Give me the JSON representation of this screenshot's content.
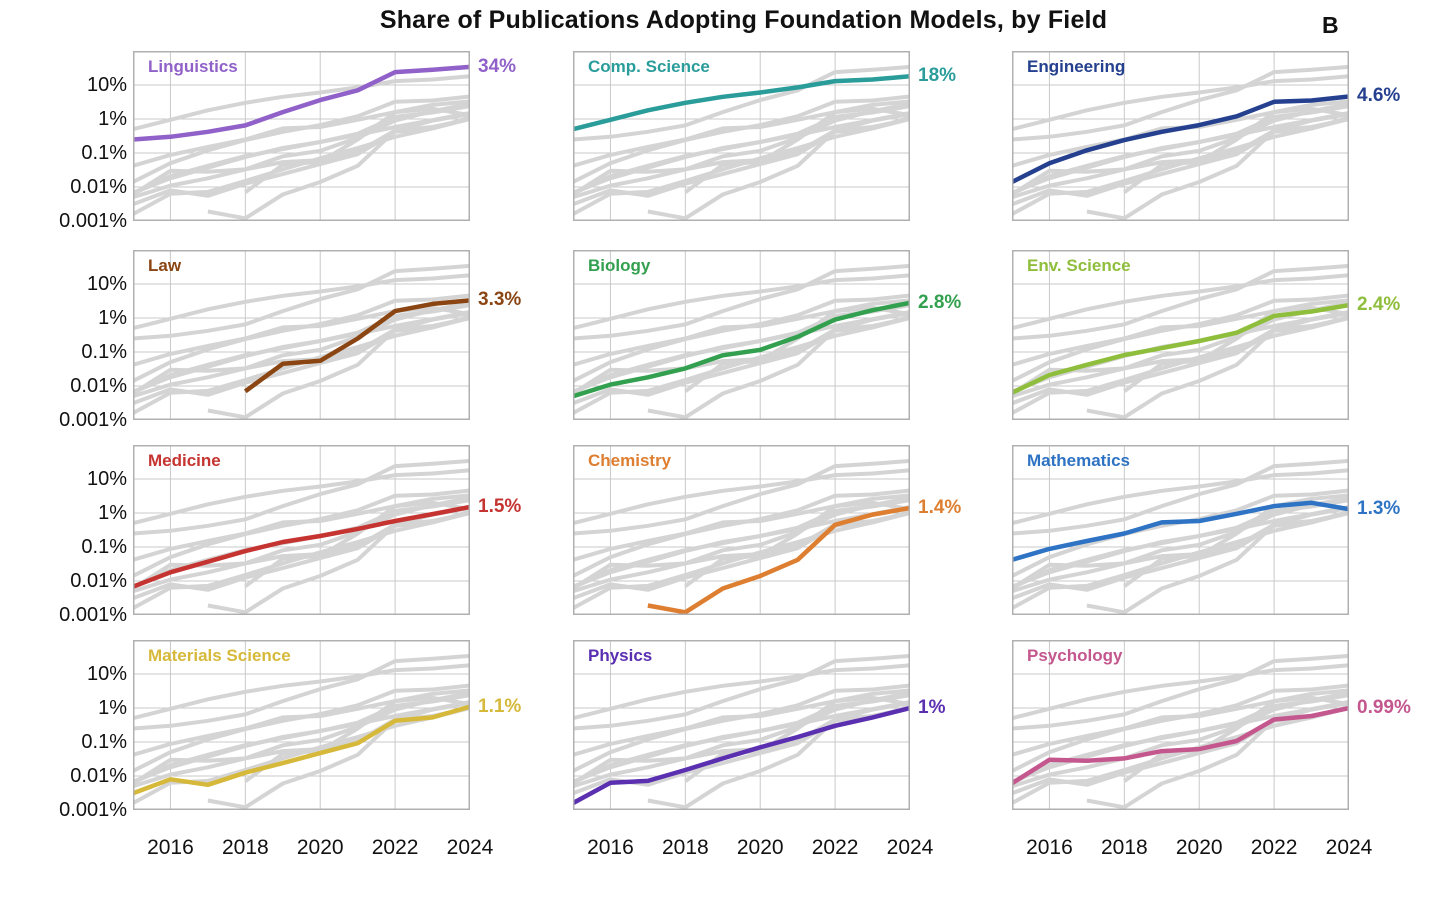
{
  "title": "Share of Publications Adopting Foundation Models, by Field",
  "panel_letter": "B",
  "colors": {
    "background": "#ffffff",
    "text": "#111111",
    "grid_line": "#c9c9c9",
    "panel_border": "#b0b0b0",
    "background_series": "#d4d4d4"
  },
  "chart_data": {
    "type": "line",
    "y_scale": "log",
    "grid": true,
    "x": [
      2015,
      2016,
      2017,
      2018,
      2019,
      2020,
      2021,
      2022,
      2023,
      2024
    ],
    "xlim": [
      2015,
      2024
    ],
    "ylim_percent": [
      0.001,
      100
    ],
    "x_ticks": [
      "2016",
      "2018",
      "2020",
      "2022",
      "2024"
    ],
    "x_tick_years": [
      2016,
      2018,
      2020,
      2022,
      2024
    ],
    "y_ticks": [
      {
        "label": "10%",
        "value": 10
      },
      {
        "label": "1%",
        "value": 1
      },
      {
        "label": "0.1%",
        "value": 0.1
      },
      {
        "label": "0.01%",
        "value": 0.01
      },
      {
        "label": "0.001%",
        "value": 0.001
      }
    ],
    "series": [
      {
        "name": "Linguistics",
        "color": "#9061c8",
        "end_label": "34%",
        "values": [
          0.25,
          0.3,
          0.42,
          0.65,
          1.6,
          3.6,
          7,
          24,
          28,
          34
        ]
      },
      {
        "name": "Comp. Science",
        "color": "#2a9d9b",
        "end_label": "18%",
        "values": [
          0.5,
          0.95,
          1.8,
          3,
          4.5,
          6,
          8.5,
          13,
          14.5,
          18
        ]
      },
      {
        "name": "Engineering",
        "color": "#24408f",
        "end_label": "4.6%",
        "values": [
          0.014,
          0.05,
          0.12,
          0.24,
          0.42,
          0.66,
          1.2,
          3.2,
          3.5,
          4.6
        ]
      },
      {
        "name": "Law",
        "color": "#8a4513",
        "end_label": "3.3%",
        "values": [
          null,
          null,
          null,
          0.007,
          0.045,
          0.055,
          0.25,
          1.6,
          2.6,
          3.3
        ]
      },
      {
        "name": "Biology",
        "color": "#33a04f",
        "end_label": "2.8%",
        "values": [
          0.005,
          0.011,
          0.018,
          0.033,
          0.08,
          0.115,
          0.28,
          0.9,
          1.7,
          2.8
        ]
      },
      {
        "name": "Env. Science",
        "color": "#8fbe3c",
        "end_label": "2.4%",
        "values": [
          0.0063,
          0.021,
          0.042,
          0.081,
          0.13,
          0.21,
          0.37,
          1.15,
          1.55,
          2.4
        ]
      },
      {
        "name": "Medicine",
        "color": "#c53430",
        "end_label": "1.5%",
        "values": [
          0.0068,
          0.018,
          0.037,
          0.076,
          0.14,
          0.21,
          0.34,
          0.58,
          0.93,
          1.5
        ]
      },
      {
        "name": "Chemistry",
        "color": "#dd7e30",
        "end_label": "1.4%",
        "values": [
          null,
          null,
          0.0019,
          0.0012,
          0.006,
          0.014,
          0.042,
          0.45,
          0.9,
          1.4
        ]
      },
      {
        "name": "Mathematics",
        "color": "#2e73c4",
        "end_label": "1.3%",
        "values": [
          0.042,
          0.088,
          0.15,
          0.25,
          0.53,
          0.58,
          0.95,
          1.6,
          2.0,
          1.3
        ]
      },
      {
        "name": "Materials Science",
        "color": "#d6b93a",
        "end_label": "1.1%",
        "values": [
          0.0031,
          0.008,
          0.0055,
          0.0125,
          0.024,
          0.047,
          0.092,
          0.42,
          0.53,
          1.1
        ]
      },
      {
        "name": "Physics",
        "color": "#5a2fb0",
        "end_label": "1%",
        "values": [
          0.0016,
          0.0063,
          0.0072,
          0.015,
          0.033,
          0.07,
          0.14,
          0.3,
          0.53,
          1.0
        ]
      },
      {
        "name": "Psychology",
        "color": "#c4578e",
        "end_label": "0.99%",
        "values": [
          0.0061,
          0.03,
          0.028,
          0.033,
          0.054,
          0.062,
          0.107,
          0.46,
          0.58,
          0.99
        ]
      }
    ]
  }
}
